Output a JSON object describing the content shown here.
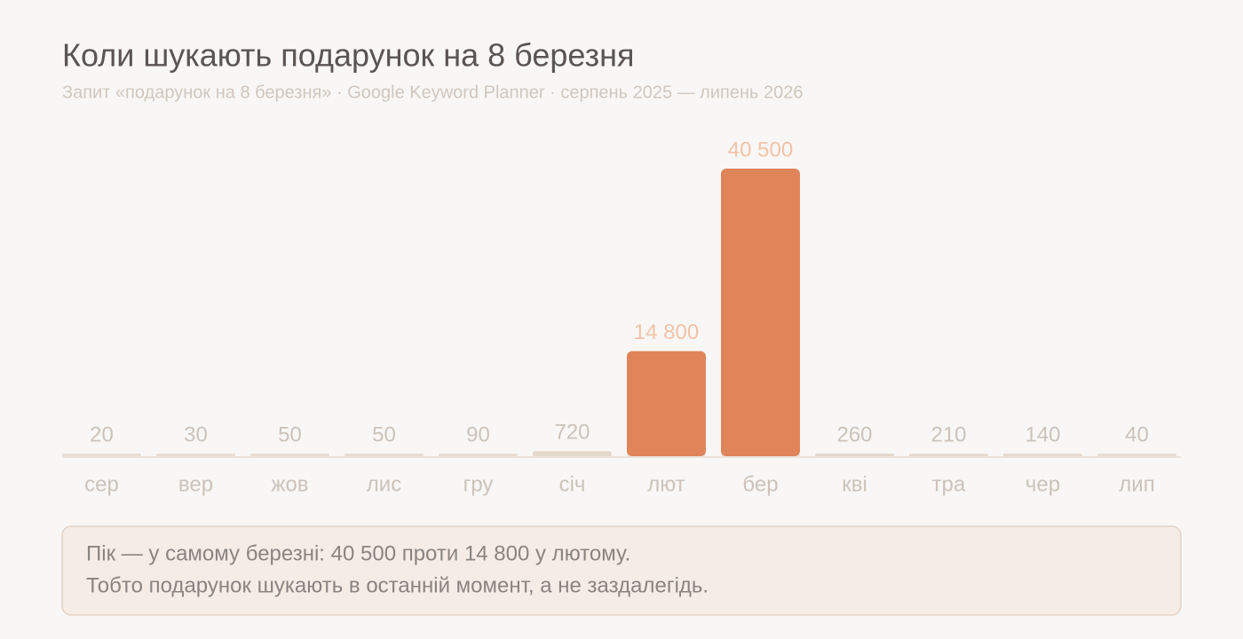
{
  "chart_data": {
    "type": "bar",
    "title": "Коли шукають подарунок на 8 березня",
    "subtitle": "Запит «подарунок на 8 березня» · Google Keyword Planner · серпень 2025 — липень 2026",
    "categories": [
      "сер",
      "вер",
      "жов",
      "лис",
      "гру",
      "січ",
      "лют",
      "бер",
      "кві",
      "тра",
      "чер",
      "лип"
    ],
    "values": [
      20,
      30,
      50,
      50,
      90,
      720,
      14800,
      40500,
      260,
      210,
      140,
      40
    ],
    "value_labels": [
      "20",
      "30",
      "50",
      "50",
      "90",
      "720",
      "14 800",
      "40 500",
      "260",
      "210",
      "140",
      "40"
    ],
    "colors": [
      "#e2d8cd",
      "#e2d8cd",
      "#e2d8cd",
      "#e2d8cd",
      "#e2d8cd",
      "#e2d8cd",
      "#e0845a",
      "#e0845a",
      "#e2d8cd",
      "#e2d8cd",
      "#e2d8cd",
      "#e2d8cd"
    ],
    "note": [
      "Пік — у самому березні: 40 500 проти 14 800 у лютому.",
      "Тобто подарунок шукають в останній момент, а не заздалегідь."
    ]
  }
}
